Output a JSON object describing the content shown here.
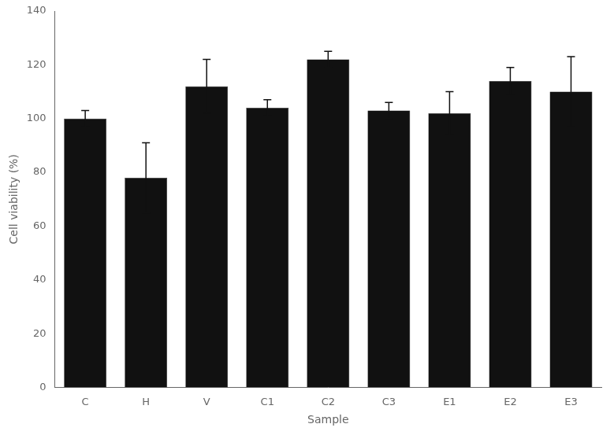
{
  "chart_data": {
    "type": "bar",
    "categories": [
      "C",
      "H",
      "V",
      "C1",
      "C2",
      "C3",
      "E1",
      "E2",
      "E3"
    ],
    "values": [
      100,
      78,
      112,
      104,
      122,
      103,
      102,
      114,
      110
    ],
    "errors": [
      3,
      13,
      10,
      3,
      3,
      3,
      8,
      5,
      13
    ],
    "color": "#111111",
    "xlabel": "Sample",
    "ylabel": "Cell viability (%)",
    "ylim": [
      0,
      140
    ],
    "yticks": [
      0,
      20,
      40,
      60,
      80,
      100,
      120,
      140
    ],
    "grid": false
  }
}
